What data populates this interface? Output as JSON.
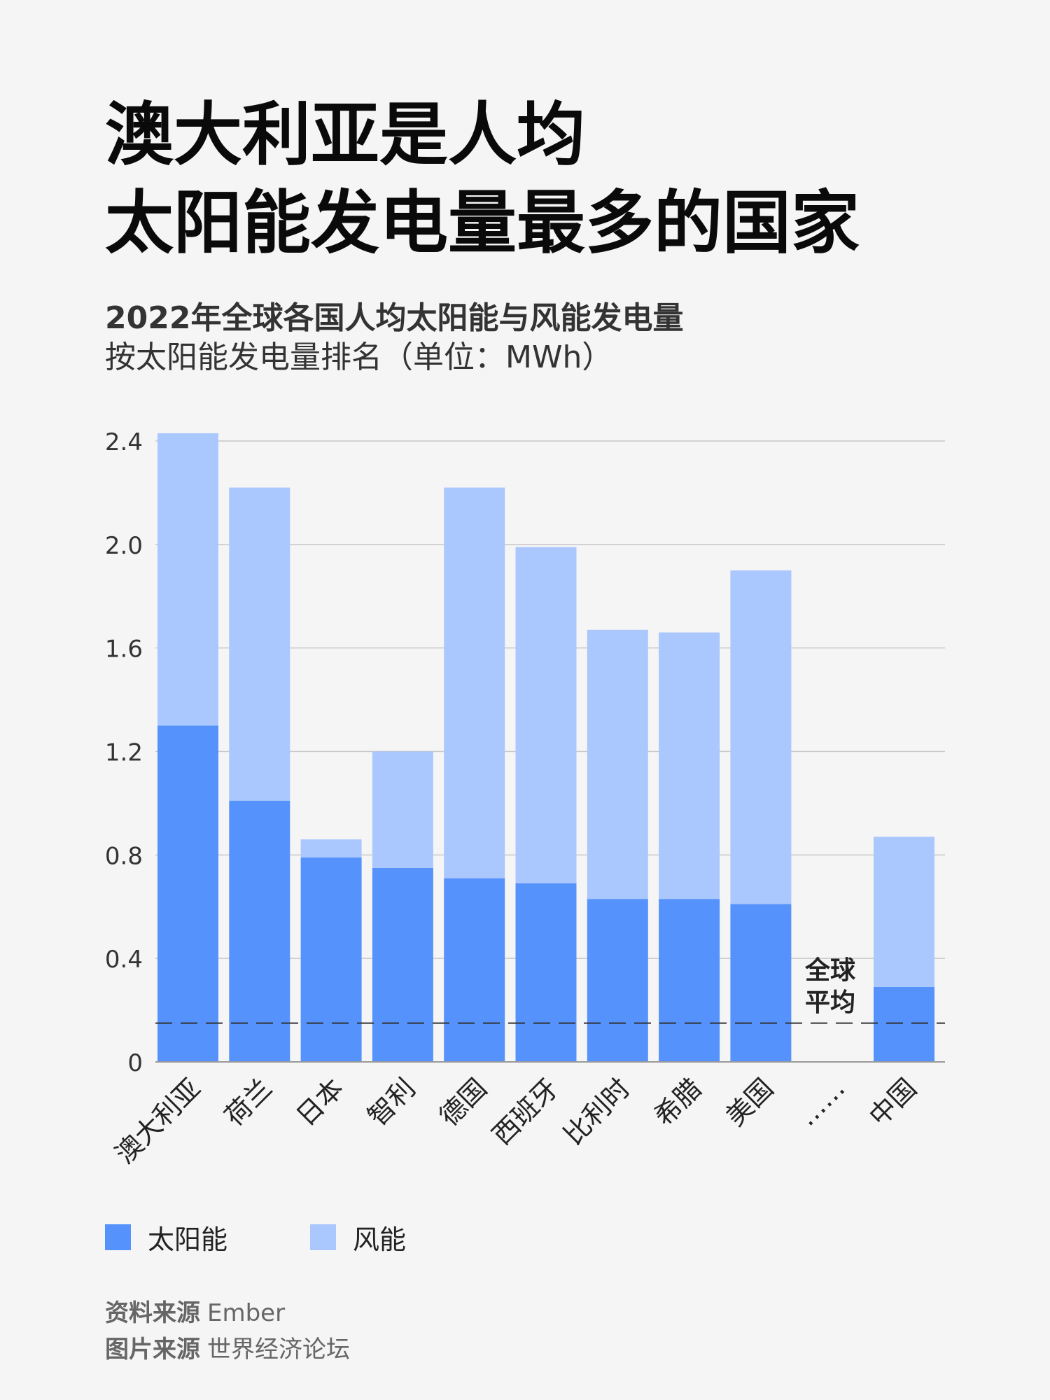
{
  "title": {
    "line1": "澳大利亚是人均",
    "line2": "太阳能发电量最多的国家"
  },
  "subtitle": "2022年全球各国人均太阳能与风能发电量",
  "subtitle2": "按太阳能发电量排名（单位：MWh）",
  "colors": {
    "solar": "#5592fb",
    "wind": "#aac8fd",
    "grid": "#c8c8c8",
    "axis": "#999999",
    "average_line": "#333333"
  },
  "chart_data": {
    "type": "bar",
    "stacked": true,
    "categories": [
      "澳大利亚",
      "荷兰",
      "日本",
      "智利",
      "德国",
      "西班牙",
      "比利时",
      "希腊",
      "美国",
      "……",
      "中国"
    ],
    "series": [
      {
        "name": "太阳能",
        "values": [
          1.3,
          1.01,
          0.79,
          0.75,
          0.71,
          0.69,
          0.63,
          0.63,
          0.61,
          null,
          0.29
        ]
      },
      {
        "name": "风能",
        "values": [
          1.13,
          1.21,
          0.07,
          0.45,
          1.51,
          1.3,
          1.04,
          1.03,
          1.29,
          null,
          0.58
        ]
      }
    ],
    "ylim": [
      0,
      2.4
    ],
    "yticks": [
      "0",
      "0.4",
      "0.8",
      "1.2",
      "1.6",
      "2.0",
      "2.4"
    ],
    "xlabel": "",
    "ylabel": "",
    "grid": true,
    "legend": "bottom-left",
    "average": {
      "value": 0.15,
      "label_line1": "全球",
      "label_line2": "平均"
    }
  },
  "legend": {
    "solar_label": "太阳能",
    "wind_label": "风能"
  },
  "footer": {
    "source_key": "资料来源",
    "source_val": "Ember",
    "image_key": "图片来源",
    "image_val": "世界经济论坛"
  }
}
